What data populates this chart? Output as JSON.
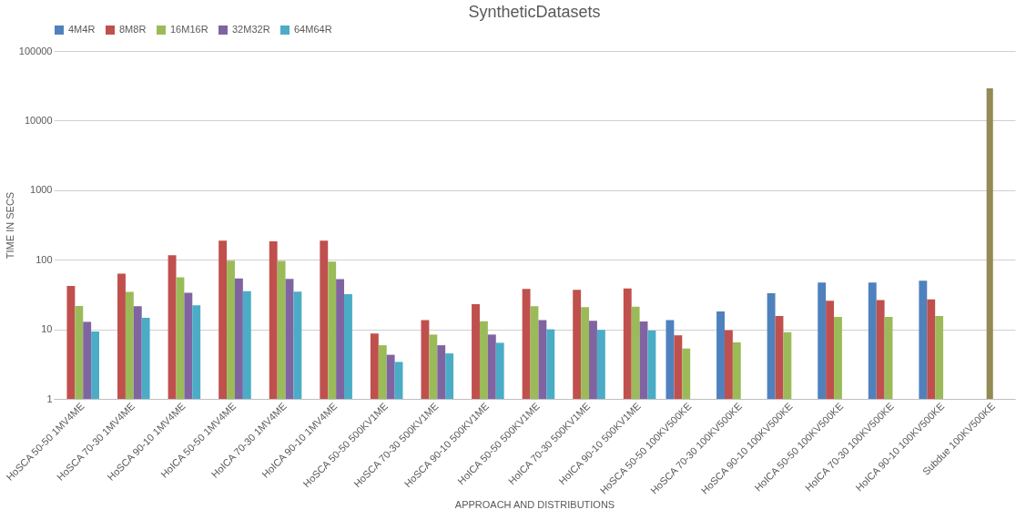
{
  "chart_data": {
    "type": "bar",
    "title": "SyntheticDatasets",
    "xlabel": "APPROACH AND DISTRIBUTIONS",
    "ylabel": "TIME IN SECS",
    "categories": [
      "HoSCA 50-50 1MV4ME",
      "HoSCA 70-30 1MV4ME",
      "HoSCA 90-10 1MV4ME",
      "HoICA 50-50 1MV4ME",
      "HoICA 70-30 1MV4ME",
      "HoICA 90-10 1MV4ME",
      "HoSCA 50-50 500KV1ME",
      "HoSCA 70-30 500KV1ME",
      "HoSCA 90-10 500KV1ME",
      "HoICA 50-50 500KV1ME",
      "HoICA 70-30 500KV1ME",
      "HoICA 90-10 500KV1ME",
      "HoSCA 50-50 100KV500KE",
      "HoSCA 70-30 100KV500KE",
      "HoSCA 90-10 100KV500KE",
      "HoICA 50-50 100KV500KE",
      "HoICA 70-30 100KV500KE",
      "HoICA 90-10 100KV500KE",
      "Subdue 100KV500KE"
    ],
    "series": [
      {
        "name": "4M4R",
        "color": "#4f81bd",
        "values": [
          null,
          null,
          null,
          null,
          null,
          null,
          null,
          null,
          null,
          null,
          null,
          null,
          13.6,
          18,
          33,
          47,
          47,
          50,
          null
        ]
      },
      {
        "name": "8M8R",
        "color": "#c0504d",
        "values": [
          42,
          63,
          116,
          188,
          184,
          188,
          8.7,
          13.6,
          23,
          38,
          37,
          38.5,
          8.2,
          9.7,
          15.5,
          25.7,
          26.3,
          26.9,
          null
        ]
      },
      {
        "name": "16M16R",
        "color": "#9bbb59",
        "values": [
          21.6,
          34.5,
          56,
          97,
          96,
          94,
          5.9,
          8.4,
          13.1,
          21.4,
          20.9,
          21.1,
          5.3,
          6.5,
          9.1,
          15.1,
          15.1,
          15.5,
          null
        ]
      },
      {
        "name": "32M32R",
        "color": "#8064a2",
        "values": [
          12.8,
          21.4,
          33.4,
          53.8,
          53.2,
          52.7,
          4.3,
          5.9,
          8.4,
          13.6,
          13.3,
          13,
          null,
          null,
          null,
          null,
          null,
          null,
          null
        ]
      },
      {
        "name": "64M64R",
        "color": "#4bacc6",
        "values": [
          9.3,
          14.6,
          22.1,
          35.3,
          34.9,
          32,
          3.4,
          4.5,
          6.4,
          10,
          9.8,
          9.6,
          null,
          null,
          null,
          null,
          null,
          null,
          null
        ]
      },
      {
        "color": "#948a54",
        "values": [
          null,
          null,
          null,
          null,
          null,
          null,
          null,
          null,
          null,
          null,
          null,
          null,
          null,
          null,
          null,
          null,
          null,
          null,
          29000
        ]
      }
    ],
    "log": true,
    "ylim": [
      1,
      100000
    ],
    "yticks": [
      1,
      10,
      100,
      1000,
      10000,
      100000
    ],
    "grid": "y",
    "legend": "top"
  }
}
